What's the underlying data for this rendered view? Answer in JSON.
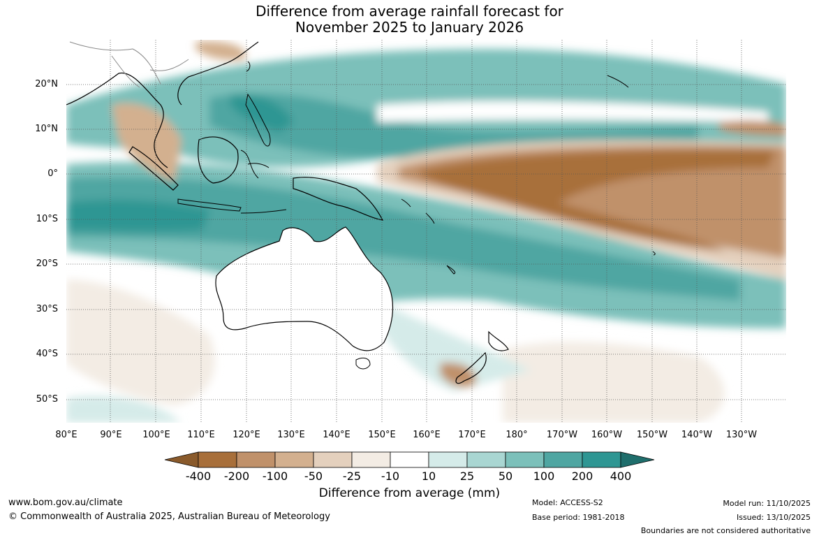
{
  "title": {
    "line1": "Difference from average rainfall forecast for",
    "line2": "November 2025 to January 2026"
  },
  "map": {
    "lat_labels": [
      "20°N",
      "10°N",
      "0°",
      "10°S",
      "20°S",
      "30°S",
      "40°S",
      "50°S"
    ],
    "lon_labels": [
      "80°E",
      "90°E",
      "100°E",
      "110°E",
      "120°E",
      "130°E",
      "140°E",
      "150°E",
      "160°E",
      "170°E",
      "180°",
      "170°W",
      "160°W",
      "150°W",
      "140°W",
      "130°W"
    ]
  },
  "colorbar": {
    "labels": [
      "-400",
      "-200",
      "-100",
      "-50",
      "-25",
      "-10",
      "10",
      "25",
      "50",
      "100",
      "200",
      "400"
    ],
    "colors": [
      "#8a5a2b",
      "#a86f3a",
      "#c0916a",
      "#d3b08f",
      "#e4d0bd",
      "#f3ece4",
      "#ffffff",
      "#d5ebe9",
      "#a9d6d2",
      "#7cc0ba",
      "#4fa6a2",
      "#2e9693",
      "#1f6e6c"
    ],
    "title": "Difference from average (mm)"
  },
  "footer": {
    "website": "www.bom.gov.au/climate",
    "copyright": "© Commonwealth of Australia 2025, Australian Bureau of Meteorology",
    "model": "Model: ACCESS-S2",
    "base_period": "Base period: 1981-2018",
    "model_run": "Model run: 11/10/2025",
    "issued": "Issued: 13/10/2025",
    "disclaimer": "Boundaries are not considered authoritative"
  }
}
